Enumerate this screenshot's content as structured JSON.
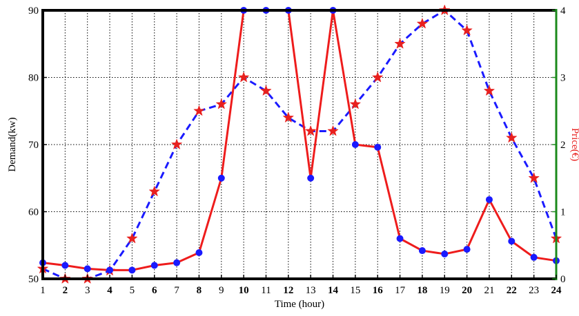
{
  "chart_data": {
    "type": "line",
    "title": "",
    "xlabel": "Time (hour)",
    "ylabel_left": "Demand(kw)",
    "ylabel_right": "Price(€)",
    "x": [
      1,
      2,
      3,
      4,
      5,
      6,
      7,
      8,
      9,
      10,
      11,
      12,
      13,
      14,
      15,
      16,
      17,
      18,
      19,
      20,
      21,
      22,
      23,
      24
    ],
    "x_tick_labels": [
      "1",
      "2",
      "3",
      "4",
      "5",
      "6",
      "7",
      "8",
      "9",
      "10",
      "11",
      "12",
      "13",
      "14",
      "15",
      "16",
      "17",
      "18",
      "19",
      "20",
      "21",
      "22",
      "23",
      "24"
    ],
    "ylim_left": [
      50,
      90
    ],
    "y_left_ticks": [
      "50",
      "60",
      "70",
      "80",
      "90"
    ],
    "ylim_right": [
      0,
      4
    ],
    "y_right_ticks": [
      "0",
      "1",
      "2",
      "3",
      "4"
    ],
    "grid": true,
    "series": [
      {
        "axis": "left",
        "style": "dashed",
        "line_color": "#1a1aff",
        "marker": "star",
        "marker_color": "#e8201e",
        "values": [
          51.5,
          50.0,
          50.0,
          51.2,
          56.0,
          63.0,
          70.0,
          75.0,
          76.0,
          80.0,
          78.0,
          74.0,
          72.0,
          72.0,
          76.0,
          80.0,
          85.0,
          88.0,
          90.0,
          87.0,
          78.0,
          71.0,
          65.0,
          56.0
        ]
      },
      {
        "axis": "right",
        "style": "solid",
        "line_color": "#ee1c1c",
        "marker": "circle",
        "marker_color": "#1a1aff",
        "values": [
          0.24,
          0.2,
          0.15,
          0.13,
          0.13,
          0.2,
          0.24,
          0.39,
          1.5,
          4.0,
          4.0,
          4.0,
          1.5,
          4.0,
          2.0,
          1.96,
          0.6,
          0.42,
          0.37,
          0.44,
          1.18,
          0.56,
          0.32,
          0.27
        ]
      }
    ],
    "colors": {
      "left_axis": "#000000",
      "right_axis": "#1b8a1b",
      "right_label": "#e8201e"
    }
  }
}
